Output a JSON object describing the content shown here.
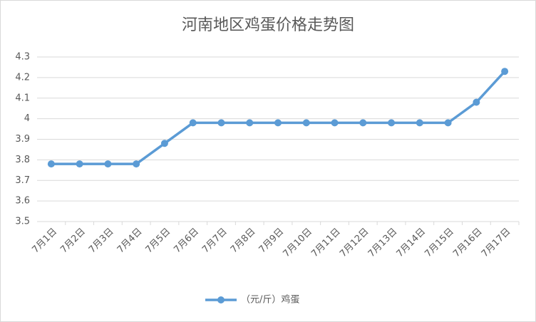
{
  "chart_data": {
    "type": "line",
    "title": "河南地区鸡蛋价格走势图",
    "categories": [
      "7月1日",
      "7月2日",
      "7月3日",
      "7月4日",
      "7月5日",
      "7月6日",
      "7月7日",
      "7月8日",
      "7月9日",
      "7月10日",
      "7月11日",
      "7月12日",
      "7月13日",
      "7月14日",
      "7月15日",
      "7月16日",
      "7月17日"
    ],
    "series": [
      {
        "name": "（元/斤）鸡蛋",
        "color": "#5b9bd5",
        "values": [
          3.78,
          3.78,
          3.78,
          3.78,
          3.88,
          3.98,
          3.98,
          3.98,
          3.98,
          3.98,
          3.98,
          3.98,
          3.98,
          3.98,
          3.98,
          4.08,
          4.23
        ]
      }
    ],
    "ylim": [
      3.5,
      4.3
    ],
    "yticks": [
      3.5,
      3.6,
      3.7,
      3.8,
      3.9,
      4,
      4.1,
      4.2,
      4.3
    ],
    "grid": true,
    "legend": "bottom"
  }
}
